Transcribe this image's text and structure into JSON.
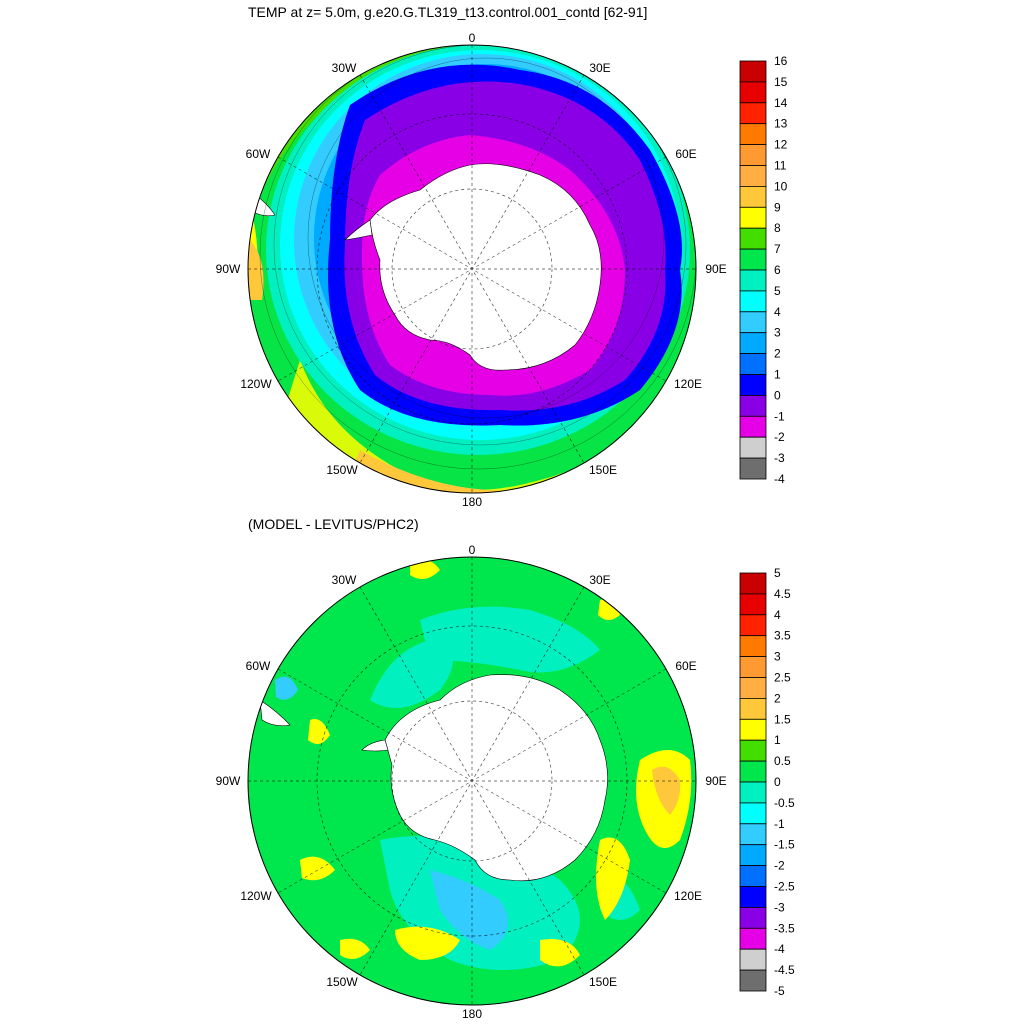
{
  "panels": [
    {
      "id": "top",
      "title": "TEMP at z=   5.0m, g.e20.G.TL319_t13.control.001_contd [62-91]",
      "lon_labels": [
        "0",
        "30E",
        "60E",
        "90E",
        "120E",
        "150E",
        "180",
        "150W",
        "120W",
        "90W",
        "60W",
        "30W"
      ],
      "colorbar": {
        "levels": [
          "16",
          "15",
          "14",
          "13",
          "12",
          "11",
          "10",
          "9",
          "8",
          "7",
          "6",
          "5",
          "4",
          "3",
          "2",
          "1",
          "0",
          "-1",
          "-2",
          "-3",
          "-4"
        ],
        "colors": [
          "#c80000",
          "#e60000",
          "#ff2200",
          "#ff7a00",
          "#ff9a33",
          "#ffae42",
          "#ffc83a",
          "#ffff00",
          "#44dd00",
          "#00e64d",
          "#00f0c0",
          "#00ffff",
          "#33ccff",
          "#00aaff",
          "#0070ff",
          "#0000ff",
          "#8a00e6",
          "#e600e6",
          "#cfcfcf",
          "#6e6e6e"
        ]
      }
    },
    {
      "id": "bottom",
      "title": "(MODEL - LEVITUS/PHC2)",
      "lon_labels": [
        "0",
        "30E",
        "60E",
        "90E",
        "120E",
        "150E",
        "180",
        "150W",
        "120W",
        "90W",
        "60W",
        "30W"
      ],
      "colorbar": {
        "levels": [
          "5",
          "4.5",
          "4",
          "3.5",
          "3",
          "2.5",
          "2",
          "1.5",
          "1",
          "0.5",
          "0",
          "-0.5",
          "-1",
          "-1.5",
          "-2",
          "-2.5",
          "-3",
          "-3.5",
          "-4",
          "-4.5",
          "-5"
        ],
        "colors": [
          "#c80000",
          "#e60000",
          "#ff2200",
          "#ff7a00",
          "#ff9a33",
          "#ffae42",
          "#ffc83a",
          "#ffff00",
          "#44dd00",
          "#00e64d",
          "#00f0c0",
          "#00ffff",
          "#33ccff",
          "#00aaff",
          "#0070ff",
          "#0000ff",
          "#8a00e6",
          "#e600e6",
          "#cfcfcf",
          "#6e6e6e"
        ]
      }
    }
  ]
}
